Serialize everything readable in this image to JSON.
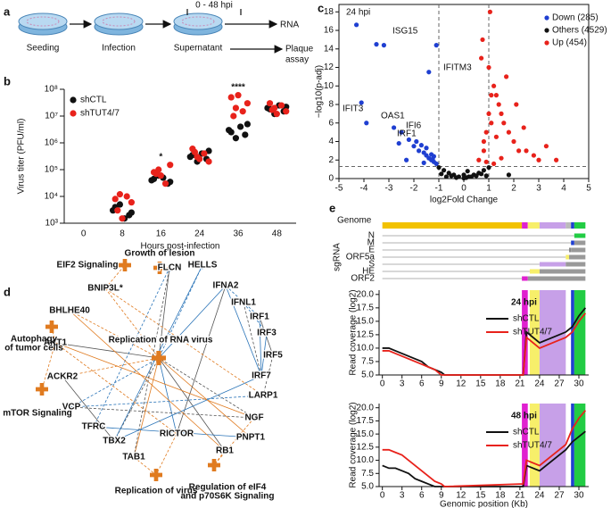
{
  "panel_labels": [
    "a",
    "b",
    "c",
    "d",
    "e"
  ],
  "workflow": {
    "time_label": "0 - 48 hpi",
    "steps": [
      "Seeding",
      "Infection",
      "Supernatant"
    ],
    "output": "RNA",
    "assay": [
      "Plaque",
      "assay"
    ]
  },
  "chart_data": [
    {
      "type": "strip",
      "ylabel": "Virus titer (PFU/ml)",
      "xlabel": "Hours post-infection",
      "log_scale": true,
      "categories": [
        "0",
        "8",
        "16",
        "24",
        "36",
        "48"
      ],
      "ylim": [
        1000,
        100000000
      ],
      "yticks": [
        {
          "value": 1000,
          "label": "10³"
        },
        {
          "value": 10000,
          "label": "10⁴"
        },
        {
          "value": 100000,
          "label": "10⁵"
        },
        {
          "value": 1000000,
          "label": "10⁶"
        },
        {
          "value": 10000000,
          "label": "10⁷"
        },
        {
          "value": 100000000,
          "label": "10⁸"
        }
      ],
      "significance": [
        null,
        null,
        "*",
        null,
        "****",
        null
      ],
      "series": [
        {
          "name": "shCTL",
          "color": "#111111",
          "values": [
            [],
            [
              3000,
              2000,
              1500,
              5000,
              4000,
              2500
            ],
            [
              40000,
              30000,
              50000,
              60000,
              45000,
              35000
            ],
            [
              300000,
              250000,
              400000,
              200000,
              350000,
              500000
            ],
            [
              3000000,
              2000000,
              4000000,
              1500000,
              2500000,
              5000000
            ],
            [
              20000000,
              15000000,
              25000000,
              12000000,
              18000000,
              22000000
            ]
          ]
        },
        {
          "name": "shTUT4/7",
          "color": "#e8221b",
          "values": [
            [],
            [
              12000,
              8000,
              6000,
              10000,
              1500,
              3000
            ],
            [
              100000,
              80000,
              150000,
              30000,
              60000,
              70000
            ],
            [
              300000,
              600000,
              200000,
              400000,
              250000,
              450000
            ],
            [
              20000000,
              50000000,
              30000000,
              15000000,
              60000000,
              10000000
            ],
            [
              20000000,
              30000000,
              15000000,
              25000000,
              12000000,
              17000000
            ]
          ]
        }
      ]
    },
    {
      "type": "scatter",
      "subtitle": "24 hpi",
      "xlabel": "log2Fold Change",
      "ylabel": "−log10(p-adj)",
      "xlim": [
        -5,
        5
      ],
      "ylim": [
        0,
        18.8
      ],
      "xticks": [
        -5,
        -4,
        -3,
        -2,
        -1,
        0,
        1,
        2,
        3,
        4,
        5
      ],
      "yticks": [
        0,
        2,
        4,
        6,
        8,
        10,
        12,
        14,
        16,
        18
      ],
      "vlines": [
        -1,
        1
      ],
      "hline": 1.3,
      "gene_labels": [
        "ISG15",
        "IFITM3",
        "IFIT3",
        "OAS1",
        "IFI6",
        "IRF1"
      ],
      "series": [
        {
          "name": "Down (285)",
          "color": "#1f3fd1",
          "x": [
            -4.3,
            -3.5,
            -3.2,
            -2.8,
            -2.5,
            -2.2,
            -2.0,
            -1.8,
            -1.6,
            -1.5,
            -1.4,
            -1.3,
            -1.2,
            -1.1,
            -1.9,
            -1.7,
            -1.5,
            -1.3,
            -1.2,
            -4.1,
            -3.9,
            -2.6,
            -1.4,
            -1.1,
            -2.3,
            -1.6,
            -1.25
          ],
          "values": [
            16.6,
            14.5,
            14.4,
            5.5,
            5,
            4.2,
            3.5,
            3,
            2.8,
            2.5,
            2.2,
            2.0,
            1.8,
            1.6,
            4.0,
            3.6,
            3.3,
            2.6,
            2.4,
            8.2,
            6.0,
            3.8,
            11.5,
            14.4,
            2.0,
            1.7,
            2.1
          ]
        },
        {
          "name": "Others (4529)",
          "color": "#111111",
          "x": [
            -1,
            -0.8,
            -0.6,
            -0.4,
            -0.2,
            0,
            0.2,
            0.4,
            0.6,
            0.8,
            1,
            -0.9,
            -0.5,
            -0.3,
            0.1,
            0.3,
            0.5,
            0.7,
            0.9,
            -0.7,
            0,
            0.15,
            1.8
          ],
          "values": [
            1.2,
            0.9,
            0.6,
            0.4,
            0.2,
            0.05,
            0.2,
            0.4,
            0.6,
            0.9,
            1.2,
            0.5,
            0.3,
            0.1,
            0.1,
            0.2,
            0.3,
            0.5,
            0.3,
            0.2,
            0.4,
            0.8,
            0.4
          ]
        },
        {
          "name": "Up (454)",
          "color": "#e8221b",
          "x": [
            0.6,
            0.8,
            0.9,
            1.0,
            1.1,
            1.2,
            1.4,
            1.6,
            1.8,
            2.0,
            2.2,
            2.5,
            2.8,
            3.0,
            3.3,
            3.7,
            0.7,
            1.0,
            1.3,
            1.5,
            0.8,
            1.1,
            1.7,
            2.1,
            0.9,
            1.2,
            1.5,
            2.4,
            0.75,
            1.05,
            1.3
          ],
          "values": [
            2,
            3,
            5,
            7,
            9,
            10,
            8,
            6,
            5,
            4,
            3,
            3,
            2.5,
            2,
            3.5,
            2,
            13,
            12,
            9,
            7,
            4,
            6,
            11,
            8,
            1.8,
            1.6,
            2.2,
            5.5,
            15,
            18,
            4.5
          ]
        }
      ]
    },
    {
      "type": "line",
      "title": "24 hpi",
      "ylabel": "Read coverage (log2)",
      "xlim": [
        -0.5,
        31.5
      ],
      "ylim": [
        5,
        20.8
      ],
      "xticks": [
        0,
        3,
        6,
        9,
        12,
        15,
        18,
        21,
        24,
        27,
        30
      ],
      "yticks": [
        {
          "value": 5,
          "label": "5.0"
        },
        7.5,
        {
          "value": 10,
          "label": "10.0"
        },
        12.5,
        {
          "value": 15,
          "label": "15.0"
        },
        17.5,
        {
          "value": 20,
          "label": "20.0"
        }
      ],
      "x": [
        0,
        1,
        2,
        3,
        4,
        5,
        6,
        7,
        8,
        9,
        9.5,
        21.5,
        22,
        24,
        26,
        28,
        29,
        30,
        31
      ],
      "series": [
        {
          "name": "shCTL",
          "color": "#111111",
          "values": [
            10,
            10,
            9.5,
            9,
            8.5,
            8,
            7.5,
            6.5,
            6,
            5.5,
            5,
            5,
            13,
            11,
            12,
            13,
            14,
            16,
            17.5
          ]
        },
        {
          "name": "shTUT4/7",
          "color": "#e8221b",
          "values": [
            9.5,
            9.5,
            9,
            8.5,
            8,
            7.5,
            7,
            6.5,
            6,
            5,
            5,
            5,
            12,
            10,
            11,
            12,
            13,
            15,
            16.5
          ]
        }
      ]
    },
    {
      "type": "line",
      "title": "48 hpi",
      "ylabel": "Read coverage (log2)",
      "xlabel": "Genomic position (Kb)",
      "xlim": [
        -0.5,
        31.5
      ],
      "ylim": [
        5,
        20.8
      ],
      "xticks": [
        0,
        3,
        6,
        9,
        12,
        15,
        18,
        21,
        24,
        27,
        30
      ],
      "yticks": [
        {
          "value": 5,
          "label": "5.0"
        },
        7.5,
        {
          "value": 10,
          "label": "10.0"
        },
        12.5,
        {
          "value": 15,
          "label": "15.0"
        },
        17.5,
        {
          "value": 20,
          "label": "20.0"
        }
      ],
      "x": [
        0,
        1,
        2,
        3,
        4,
        5,
        6,
        7,
        8,
        9,
        9.5,
        21.5,
        22,
        24,
        26,
        28,
        29,
        30,
        31
      ],
      "series": [
        {
          "name": "shCTL",
          "color": "#111111",
          "values": [
            9,
            8.5,
            8.5,
            8,
            7.5,
            6.5,
            6,
            5.5,
            5,
            5,
            5,
            5,
            9,
            8,
            10,
            12,
            13.5,
            14.5,
            15.5
          ]
        },
        {
          "name": "shTUT4/7",
          "color": "#e8221b",
          "values": [
            12,
            12,
            11.5,
            11,
            10,
            9,
            8,
            7,
            6,
            5.5,
            5,
            5.5,
            10,
            9,
            11,
            13,
            16,
            18,
            19.5
          ]
        }
      ]
    }
  ],
  "network": {
    "center": "Replication of RNA virus",
    "colors": {
      "orange": "#e07b20",
      "blue": "#2a74b8"
    },
    "nodes": [
      {
        "label": "FLCN",
        "group": "blue"
      },
      {
        "label": "HELLS",
        "group": "blue"
      },
      {
        "label": "IFNA2",
        "group": "blue"
      },
      {
        "label": "IFNL1",
        "group": "blue"
      },
      {
        "label": "IRF1",
        "group": "blue"
      },
      {
        "label": "IRF3",
        "group": "blue"
      },
      {
        "label": "IRF5",
        "group": "blue"
      },
      {
        "label": "IRF7",
        "group": "blue"
      },
      {
        "label": "LARP1",
        "group": "blue"
      },
      {
        "label": "NGF",
        "group": "orange"
      },
      {
        "label": "PNPT1",
        "group": "orange"
      },
      {
        "label": "RB1",
        "group": "orange"
      },
      {
        "label": "RICTOR",
        "group": "blue"
      },
      {
        "label": "TBX2",
        "group": "blue"
      },
      {
        "label": "TAB1",
        "group": "orange"
      },
      {
        "label": "TFRC",
        "group": "blue"
      },
      {
        "label": "VCP",
        "group": "blue"
      },
      {
        "label": "ACKR2",
        "group": "orange"
      },
      {
        "label": "AKT1",
        "group": "orange"
      },
      {
        "label": "BHLHE40",
        "group": "orange"
      },
      {
        "label": "BNIP3L*",
        "group": "orange"
      }
    ],
    "functions": [
      [
        "Growth of lesion"
      ],
      [
        "EIF2 Signaling"
      ],
      [
        "Autophagy",
        "of tumor cells"
      ],
      [
        "mTOR Signaling"
      ],
      [
        "Replication of virus"
      ],
      [
        "Regulation of eIF4",
        "and p70S6K Signaling"
      ]
    ]
  },
  "genome": {
    "title": "Genome",
    "sgrna_label": "sgRNA",
    "sgrnas": [
      "N",
      "M",
      "E",
      "ORF5a",
      "S",
      "HE",
      "ORF2"
    ]
  }
}
